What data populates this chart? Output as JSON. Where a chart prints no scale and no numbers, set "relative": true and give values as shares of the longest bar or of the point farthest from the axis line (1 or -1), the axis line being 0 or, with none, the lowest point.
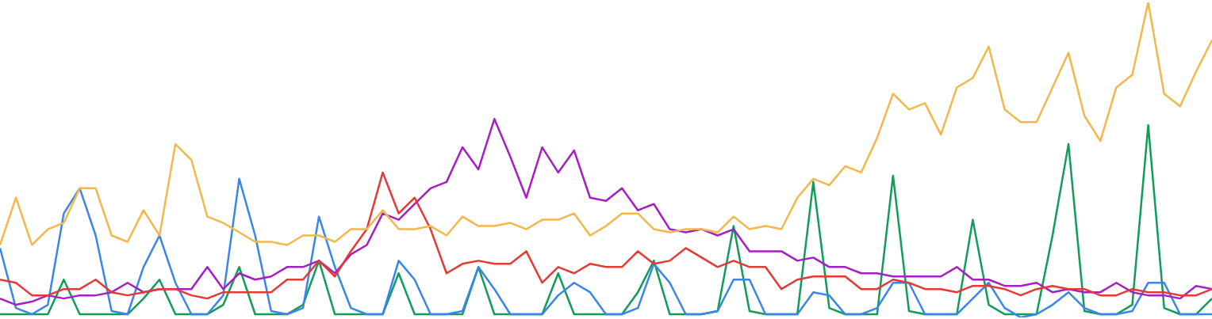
{
  "chart_data": {
    "type": "line",
    "relative": true,
    "legend": false,
    "marker": "none",
    "line_style": "solid",
    "categories": [
      null,
      null,
      null,
      null,
      null,
      null,
      null,
      null,
      null,
      null,
      null,
      null,
      null,
      null,
      null,
      null,
      null,
      null,
      null,
      null,
      null,
      null,
      null,
      null,
      null,
      null,
      null,
      null,
      null,
      null,
      null,
      null,
      null,
      null,
      null,
      null,
      null,
      null,
      null,
      null,
      null,
      null,
      null,
      null,
      null,
      null,
      null,
      null,
      null,
      null,
      null,
      null,
      null,
      null,
      null,
      null,
      null,
      null,
      null,
      null,
      null,
      null,
      null,
      null,
      null,
      null,
      null,
      null,
      null,
      null,
      null,
      null,
      null,
      null,
      null,
      null,
      null
    ],
    "series": [
      {
        "color": "#f2b84b",
        "values": [
          0.23,
          0.38,
          0.23,
          0.28,
          0.3,
          0.41,
          0.41,
          0.26,
          0.24,
          0.34,
          0.26,
          0.55,
          0.5,
          0.32,
          0.3,
          0.27,
          0.24,
          0.24,
          0.23,
          0.26,
          0.26,
          0.24,
          0.28,
          0.28,
          0.34,
          0.28,
          0.28,
          0.29,
          0.26,
          0.32,
          0.29,
          0.29,
          0.3,
          0.28,
          0.31,
          0.31,
          0.33,
          0.26,
          0.29,
          0.33,
          0.33,
          0.28,
          0.27,
          0.28,
          0.28,
          0.27,
          0.32,
          0.28,
          0.29,
          0.28,
          0.38,
          0.44,
          0.42,
          0.48,
          0.46,
          0.57,
          0.71,
          0.66,
          0.68,
          0.58,
          0.73,
          0.76,
          0.86,
          0.66,
          0.62,
          0.62,
          0.73,
          0.84,
          0.64,
          0.56,
          0.73,
          0.77,
          1,
          0.71,
          0.67,
          0.78,
          0.88
        ]
      },
      {
        "color": "#e53935",
        "values": [
          0.12,
          0.11,
          0.07,
          0.07,
          0.09,
          0.09,
          0.12,
          0.08,
          0.07,
          0.08,
          0.09,
          0.09,
          0.07,
          0.06,
          0.08,
          0.08,
          0.08,
          0.08,
          0.12,
          0.12,
          0.18,
          0.13,
          0.21,
          0.28,
          0.46,
          0.33,
          0.38,
          0.28,
          0.14,
          0.17,
          0.18,
          0.17,
          0.17,
          0.21,
          0.11,
          0.16,
          0.14,
          0.17,
          0.16,
          0.16,
          0.21,
          0.17,
          0.18,
          0.22,
          0.19,
          0.16,
          0.18,
          0.16,
          0.16,
          0.09,
          0.12,
          0.13,
          0.13,
          0.13,
          0.09,
          0.09,
          0.12,
          0.11,
          0.09,
          0.09,
          0.08,
          0.1,
          0.1,
          0.09,
          0.07,
          0.09,
          0.1,
          0.09,
          0.09,
          0.07,
          0.07,
          0.09,
          0.08,
          0.08,
          0.07,
          0.07,
          0.09
        ]
      },
      {
        "color": "#a61fc2",
        "values": [
          0.06,
          0.04,
          0.05,
          0.07,
          0.06,
          0.07,
          0.07,
          0.08,
          0.11,
          0.08,
          0.09,
          0.09,
          0.09,
          0.16,
          0.09,
          0.14,
          0.12,
          0.13,
          0.16,
          0.16,
          0.18,
          0.14,
          0.2,
          0.23,
          0.33,
          0.31,
          0.36,
          0.41,
          0.43,
          0.54,
          0.47,
          0.63,
          0.51,
          0.38,
          0.54,
          0.46,
          0.53,
          0.38,
          0.37,
          0.41,
          0.34,
          0.36,
          0.28,
          0.27,
          0.28,
          0.26,
          0.28,
          0.21,
          0.21,
          0.21,
          0.18,
          0.19,
          0.16,
          0.16,
          0.14,
          0.14,
          0.13,
          0.13,
          0.13,
          0.13,
          0.16,
          0.12,
          0.12,
          0.1,
          0.1,
          0.11,
          0.08,
          0.09,
          0.08,
          0.08,
          0.11,
          0.08,
          0.07,
          0.07,
          0.06,
          0.1,
          0.09
        ]
      },
      {
        "color": "#3a86e8",
        "values": [
          0.22,
          0.03,
          0.01,
          0.04,
          0.33,
          0.41,
          0.26,
          0.02,
          0.01,
          0.16,
          0.26,
          0.11,
          0.01,
          0.01,
          0.07,
          0.44,
          0.26,
          0.02,
          0.01,
          0.03,
          0.32,
          0.16,
          0.03,
          0.01,
          0.01,
          0.18,
          0.12,
          0.01,
          0.01,
          0.02,
          0.16,
          0.09,
          0.01,
          0.01,
          0.01,
          0.07,
          0.11,
          0.08,
          0.01,
          0.01,
          0.03,
          0.17,
          0.11,
          0.01,
          0.01,
          0.02,
          0.12,
          0.12,
          0.01,
          0.01,
          0.01,
          0.08,
          0.07,
          0.01,
          0.01,
          0.03,
          0.11,
          0.11,
          0.01,
          0.01,
          0.01,
          0.06,
          0.11,
          0.03,
          0,
          0.01,
          0.04,
          0.08,
          0.03,
          0.01,
          0.01,
          0.02,
          0.11,
          0.11,
          0.01,
          0.01,
          0.01
        ]
      },
      {
        "color": "#0f9d58",
        "values": [
          0.01,
          0.01,
          0.01,
          0.01,
          0.12,
          0.01,
          0.01,
          0.01,
          0.01,
          0.06,
          0.12,
          0.01,
          0.01,
          0.01,
          0.04,
          0.16,
          0.01,
          0.01,
          0.01,
          0.04,
          0.18,
          0.01,
          0.01,
          0.01,
          0.01,
          0.14,
          0.01,
          0.01,
          0.01,
          0.01,
          0.16,
          0.01,
          0.01,
          0.01,
          0.01,
          0.14,
          0.01,
          0.01,
          0.01,
          0.01,
          0.08,
          0.18,
          0.01,
          0.01,
          0.01,
          0.02,
          0.29,
          0.02,
          0.01,
          0.01,
          0.01,
          0.43,
          0.03,
          0.01,
          0.01,
          0.01,
          0.45,
          0.02,
          0.01,
          0.01,
          0.01,
          0.31,
          0.04,
          0.01,
          0.01,
          0.01,
          0.26,
          0.55,
          0.02,
          0.01,
          0.01,
          0.04,
          0.61,
          0.03,
          0.01,
          0.01,
          0.06
        ]
      }
    ]
  }
}
